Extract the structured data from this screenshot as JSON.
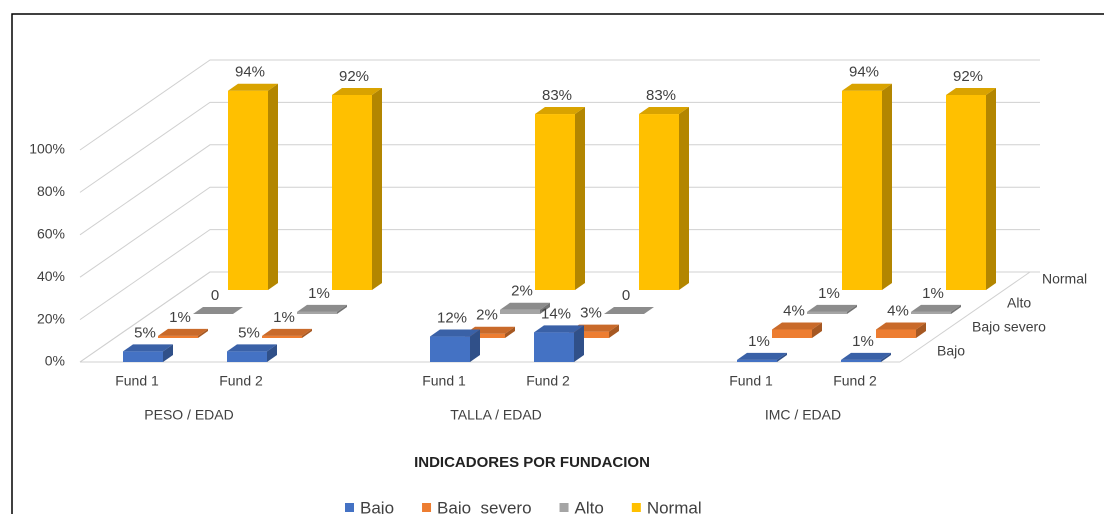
{
  "chart_data": {
    "type": "bar3d",
    "title": "INDICADORES POR FUNDACION",
    "categories": [
      "Fund 1",
      "Fund 2",
      "Fund 1",
      "Fund 2",
      "Fund 1",
      "Fund 2"
    ],
    "groups": [
      "PESO / EDAD",
      "TALLA / EDAD",
      "IMC / EDAD"
    ],
    "series": [
      {
        "name": "Bajo",
        "color": "#4472c4",
        "values": [
          5,
          5,
          12,
          14,
          1,
          1
        ],
        "value_labels": [
          "5%",
          "5%",
          "12%",
          "14%",
          "1%",
          "1%"
        ]
      },
      {
        "name": "Bajo  severo",
        "color": "#ed7d31",
        "values": [
          1,
          1,
          2,
          3,
          4,
          4
        ],
        "value_labels": [
          "1%",
          "1%",
          "2%",
          "3%",
          "4%",
          "4%"
        ]
      },
      {
        "name": "Alto",
        "color": "#a5a5a5",
        "values": [
          0,
          1,
          2,
          0,
          1,
          1
        ],
        "value_labels": [
          "0",
          "1%",
          "2%",
          "0",
          "1%",
          "1%"
        ]
      },
      {
        "name": "Normal",
        "color": "#ffc000",
        "values": [
          94,
          92,
          83,
          83,
          94,
          92
        ],
        "value_labels": [
          "94%",
          "92%",
          "83%",
          "83%",
          "94%",
          "92%"
        ]
      }
    ],
    "ylim": [
      0,
      100
    ],
    "yticks": [
      {
        "value": 0,
        "label": "0%"
      },
      {
        "value": 20,
        "label": "20%"
      },
      {
        "value": 40,
        "label": "40%"
      },
      {
        "value": 60,
        "label": "60%"
      },
      {
        "value": 80,
        "label": "80%"
      },
      {
        "value": 100,
        "label": "100%"
      }
    ],
    "grid": true,
    "legend": "bottom"
  }
}
